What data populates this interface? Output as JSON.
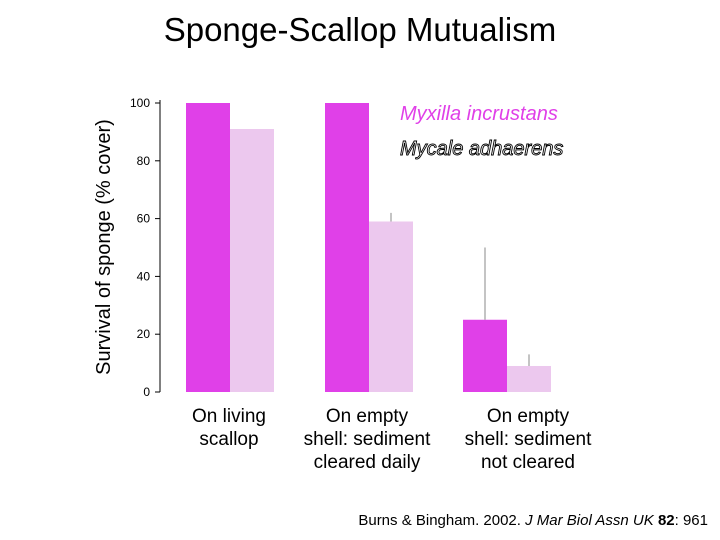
{
  "slide": {
    "title": "Sponge-Scallop Mutualism"
  },
  "citation": {
    "authors_year": "Burns & Bingham. 2002. ",
    "journal": "J Mar Biol Assn UK",
    "volume": "82",
    "pages": ": 961"
  },
  "chart_data": {
    "type": "bar",
    "ylabel": "Survival of sponge (% cover)",
    "xlabel": "",
    "ylim": [
      0,
      100
    ],
    "yticks": [
      0,
      20,
      40,
      60,
      80,
      100
    ],
    "grid": false,
    "legend_placement": "top-right",
    "categories": [
      [
        "On living",
        "scallop"
      ],
      [
        "On empty",
        "shell: sediment",
        "cleared daily"
      ],
      [
        "On empty",
        "shell: sediment",
        "not cleared"
      ]
    ],
    "series": [
      {
        "name": "Myxilla incrustans",
        "color": "#e040e8",
        "values": [
          100,
          100,
          25
        ],
        "error_upper": [
          null,
          null,
          50
        ]
      },
      {
        "name": "Mycale adhaerens",
        "color": "#ecc8ee",
        "values": [
          91,
          59,
          9
        ],
        "error_upper": [
          null,
          62,
          13
        ]
      }
    ]
  }
}
